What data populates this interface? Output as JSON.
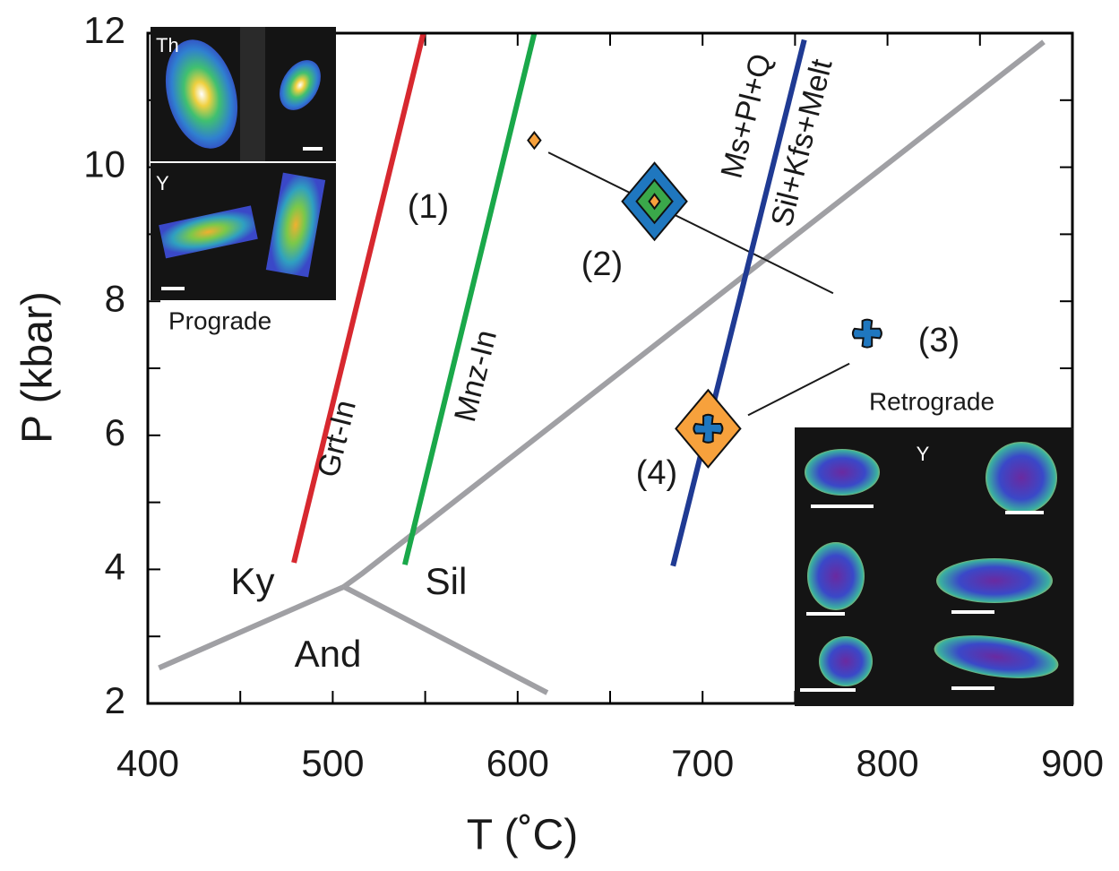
{
  "chart_data": {
    "type": "line",
    "xlabel": "T (˚C)",
    "ylabel": "P (kbar)",
    "xlim": [
      400,
      900
    ],
    "ylim": [
      2,
      12
    ],
    "xticks": [
      400,
      500,
      600,
      700,
      800,
      900
    ],
    "yticks": [
      2,
      4,
      6,
      8,
      10,
      12
    ],
    "x_minor_ticks": [
      450,
      550,
      650,
      750,
      850
    ],
    "y_minor_ticks": [
      3,
      5,
      7,
      9,
      11
    ],
    "series": [
      {
        "name": "Grt-In",
        "color": "#d7282f",
        "x": [
          479,
          549
        ],
        "values": [
          4.1,
          12
        ]
      },
      {
        "name": "Mnz-In",
        "color": "#1aa84a",
        "x": [
          539,
          609
        ],
        "values": [
          4.07,
          12
        ]
      },
      {
        "name": "Ms+Pl+Q",
        "color": "#1f3a93",
        "x": [
          684,
          755
        ],
        "values": [
          4.05,
          11.9
        ]
      }
    ],
    "reaction_product": "Sil+Kfs+Melt",
    "boundaries": [
      {
        "color": "#a0a0a4",
        "x": [
          506,
          516,
          884.5
        ],
        "values": [
          3.74,
          3.94,
          11.87
        ]
      },
      {
        "color": "#a0a0a4",
        "x": [
          506,
          406
        ],
        "values": [
          3.74,
          2.53
        ]
      },
      {
        "color": "#a0a0a4",
        "x": [
          506,
          616
        ],
        "values": [
          3.74,
          2.16
        ]
      }
    ],
    "tie_lines": [
      {
        "x": [
          616.6,
          770.6
        ],
        "values": [
          10.22,
          8.12
        ]
      },
      {
        "x": [
          724.6,
          779.4
        ],
        "values": [
          6.3,
          7.07
        ]
      }
    ],
    "markers": [
      {
        "shape": "small-diamond",
        "x": 609,
        "y": 10.4,
        "color": "#f7a13c"
      },
      {
        "shape": "big-diamond",
        "x": 674,
        "y": 9.49,
        "color": "#1f77bf"
      },
      {
        "shape": "cross",
        "x": 789,
        "y": 7.52,
        "color": "#1f77bf"
      },
      {
        "shape": "diamond-cross",
        "x": 703,
        "y": 6.1,
        "color": "#f7a13c"
      }
    ],
    "annotations": [
      "(1)",
      "(2)",
      "(3)",
      "(4)",
      "Ky",
      "Sil",
      "And"
    ],
    "insets": {
      "prograde": {
        "label": "Prograde",
        "maps": [
          "Th",
          "Y"
        ]
      },
      "retrograde": {
        "label": "Retrograde",
        "maps": [
          "Y"
        ]
      }
    }
  }
}
